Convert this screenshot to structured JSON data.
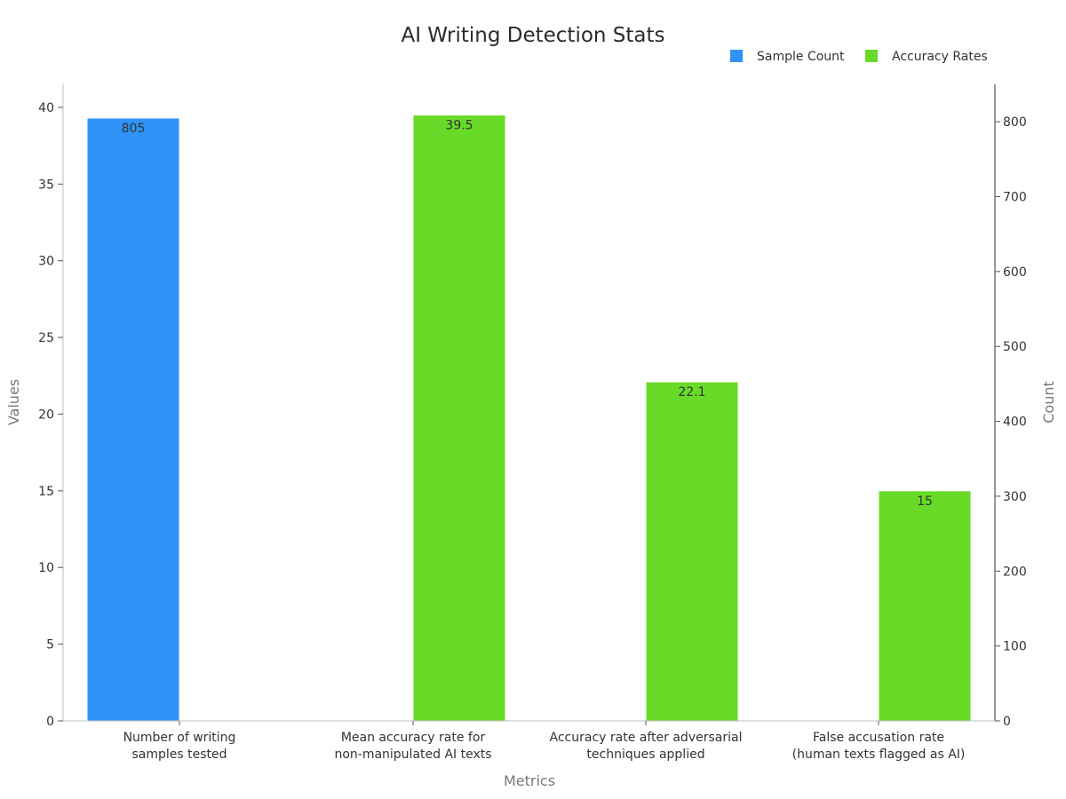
{
  "chart_data": {
    "type": "bar",
    "title": "AI Writing Detection Stats",
    "xlabel": "Metrics",
    "ylabel": "Values",
    "ylabel_right": "Count",
    "ylim": [
      0,
      41.5
    ],
    "ylim_right": [
      0,
      850
    ],
    "yticks": [
      0,
      5,
      10,
      15,
      20,
      25,
      30,
      35,
      40
    ],
    "yticks_right": [
      0,
      100,
      200,
      300,
      400,
      500,
      600,
      700,
      800
    ],
    "legend_position": "top-right",
    "categories": [
      [
        "Number of writing",
        "samples tested"
      ],
      [
        "Mean accuracy rate for",
        "non-manipulated AI texts"
      ],
      [
        "Accuracy rate after adversarial",
        "techniques applied"
      ],
      [
        "False accusation rate",
        "(human texts flagged as AI)"
      ]
    ],
    "series": [
      {
        "name": "Sample Count",
        "color": "#2f93f7",
        "axis": "right",
        "values": [
          805,
          null,
          null,
          null
        ],
        "labels": [
          "805",
          "",
          "",
          ""
        ]
      },
      {
        "name": "Accuracy Rates",
        "color": "#68db28",
        "axis": "left",
        "values": [
          null,
          39.5,
          22.1,
          15
        ],
        "labels": [
          "",
          "39.5",
          "22.1",
          "15"
        ]
      }
    ]
  }
}
